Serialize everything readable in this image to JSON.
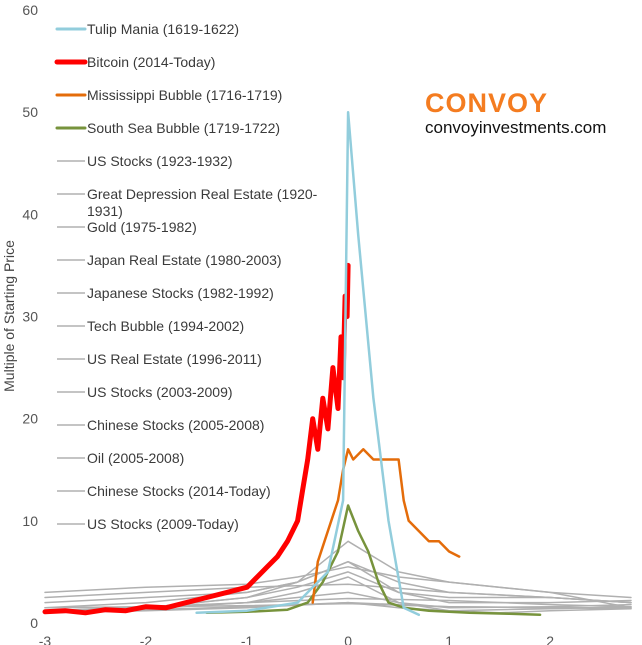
{
  "chart_data": {
    "type": "line",
    "title": "",
    "xlabel": "",
    "ylabel": "Multiple of Starting Price",
    "xlim": [
      -3,
      2.8
    ],
    "ylim": [
      0,
      60
    ],
    "x_ticks": [
      -3,
      -2,
      -1,
      0,
      1,
      2
    ],
    "y_ticks": [
      0,
      10,
      20,
      30,
      40,
      50,
      60
    ],
    "grid": false,
    "legend_position": "top-left",
    "brand": {
      "name": "CONVOY",
      "website": "convoyinvestments.com"
    },
    "colors": {
      "tulip": "#92cddc",
      "bitcoin": "#ff0000",
      "mississippi": "#e46c0a",
      "southsea": "#77933c",
      "other": "#b0b0b0"
    },
    "series": [
      {
        "name": "Tulip Mania (1619-1622)",
        "color": "#92cddc",
        "width": 2.5,
        "x": [
          -1.5,
          -1.0,
          -0.5,
          -0.2,
          -0.05,
          0.0,
          0.1,
          0.25,
          0.4,
          0.55,
          0.7
        ],
        "y": [
          1,
          1.2,
          2,
          5,
          12,
          50,
          38,
          22,
          10,
          1.5,
          0.8
        ]
      },
      {
        "name": "Bitcoin (2014-Today)",
        "color": "#ff0000",
        "width": 5,
        "x": [
          -3.0,
          -2.8,
          -2.6,
          -2.4,
          -2.2,
          -2.0,
          -1.8,
          -1.6,
          -1.4,
          -1.2,
          -1.0,
          -0.9,
          -0.8,
          -0.7,
          -0.6,
          -0.5,
          -0.45,
          -0.4,
          -0.35,
          -0.3,
          -0.25,
          -0.2,
          -0.15,
          -0.1,
          -0.07,
          -0.05,
          -0.03,
          -0.01,
          0.0
        ],
        "y": [
          1.1,
          1.2,
          1.0,
          1.3,
          1.2,
          1.6,
          1.5,
          2.0,
          2.5,
          3.0,
          3.5,
          4.5,
          5.5,
          6.5,
          8,
          10,
          13,
          16,
          20,
          17,
          22,
          19,
          25,
          21,
          28,
          24,
          32,
          30,
          35
        ]
      },
      {
        "name": "Mississippi Bubble (1716-1719)",
        "color": "#e46c0a",
        "width": 2.5,
        "x": [
          -0.35,
          -0.3,
          -0.2,
          -0.1,
          -0.05,
          0.0,
          0.05,
          0.15,
          0.25,
          0.35,
          0.5,
          0.55,
          0.6,
          0.7,
          0.8,
          0.9,
          1.0,
          1.1
        ],
        "y": [
          2,
          6,
          9,
          12,
          15,
          17,
          16,
          17,
          16,
          16,
          16,
          12,
          10,
          9,
          8,
          8,
          7,
          6.5
        ]
      },
      {
        "name": "South Sea Bubble (1719-1722)",
        "color": "#77933c",
        "width": 2.5,
        "x": [
          -1.4,
          -1.0,
          -0.6,
          -0.4,
          -0.25,
          -0.1,
          0.0,
          0.1,
          0.2,
          0.3,
          0.4,
          0.55,
          0.8,
          1.2,
          1.6,
          1.9
        ],
        "y": [
          1,
          1.1,
          1.3,
          2,
          4,
          7,
          11.5,
          9,
          7,
          4,
          2,
          1.5,
          1.2,
          1.0,
          0.9,
          0.8
        ]
      },
      {
        "name": "US Stocks (1923-1932)",
        "color": "#b0b0b0",
        "width": 1.5,
        "x": [
          -3,
          -2,
          -1,
          -0.5,
          0.0,
          0.5,
          1.0,
          1.5,
          2.0,
          2.8
        ],
        "y": [
          1,
          1.4,
          2,
          3,
          4.5,
          2,
          1.2,
          1,
          1.2,
          1.4
        ]
      },
      {
        "name": "Great Depression Real Estate (1920-1931)",
        "color": "#b0b0b0",
        "width": 1.5,
        "x": [
          -3,
          -2,
          -1,
          0,
          1,
          2,
          2.8
        ],
        "y": [
          1.5,
          1.6,
          1.7,
          1.9,
          1.6,
          1.5,
          1.4
        ]
      },
      {
        "name": "Gold (1975-1982)",
        "color": "#b0b0b0",
        "width": 1.5,
        "x": [
          -3,
          -2,
          -1,
          -0.5,
          0.0,
          0.5,
          1.0,
          2.0,
          2.8
        ],
        "y": [
          2,
          2.5,
          3,
          4,
          8,
          5,
          4,
          3,
          2.5
        ]
      },
      {
        "name": "Japan Real Estate (1980-2003)",
        "color": "#b0b0b0",
        "width": 1.5,
        "x": [
          -3,
          -2,
          -1,
          0,
          1,
          2,
          2.8
        ],
        "y": [
          1.2,
          1.6,
          2,
          2.4,
          2.2,
          1.8,
          1.6
        ]
      },
      {
        "name": "Japanese Stocks (1982-1992)",
        "color": "#b0b0b0",
        "width": 1.5,
        "x": [
          -3,
          -2,
          -1,
          -0.5,
          0.0,
          0.5,
          1.0,
          2.0,
          2.8
        ],
        "y": [
          1,
          1.5,
          2.5,
          4,
          6,
          4,
          3,
          2.5,
          2
        ]
      },
      {
        "name": "Tech Bubble (1994-2002)",
        "color": "#b0b0b0",
        "width": 1.5,
        "x": [
          -3,
          -2,
          -1,
          -0.5,
          0.0,
          0.5,
          1.0,
          2.0,
          2.8
        ],
        "y": [
          1,
          1.5,
          2.5,
          3.5,
          5,
          3,
          2,
          2,
          2.2
        ]
      },
      {
        "name": "US Real Estate (1996-2011)",
        "color": "#b0b0b0",
        "width": 1.5,
        "x": [
          -3,
          -2,
          -1,
          0,
          1,
          2,
          2.8
        ],
        "y": [
          1,
          1.2,
          1.5,
          2,
          1.6,
          1.5,
          1.5
        ]
      },
      {
        "name": "US Stocks (2003-2009)",
        "color": "#b0b0b0",
        "width": 1.5,
        "x": [
          -3,
          -2,
          -1,
          0,
          0.5,
          1,
          2,
          2.8
        ],
        "y": [
          1,
          1.3,
          1.6,
          2,
          1.5,
          1.2,
          1.4,
          1.6
        ]
      },
      {
        "name": "Chinese Stocks (2005-2008)",
        "color": "#b0b0b0",
        "width": 1.5,
        "x": [
          -3,
          -2,
          -1,
          -0.5,
          0.0,
          0.5,
          1.0,
          2.0,
          2.8
        ],
        "y": [
          1.5,
          2,
          3,
          4,
          6,
          3,
          2.5,
          2.5,
          2
        ]
      },
      {
        "name": "Oil (2005-2008)",
        "color": "#b0b0b0",
        "width": 1.5,
        "x": [
          -3,
          -2,
          -1,
          0,
          0.5,
          1,
          2,
          2.8
        ],
        "y": [
          1.2,
          1.5,
          2,
          3,
          2,
          1.5,
          1.6,
          1.8
        ]
      },
      {
        "name": "Chinese Stocks (2014-Today)",
        "color": "#b0b0b0",
        "width": 1.5,
        "x": [
          -3,
          -2,
          -1,
          -0.5,
          0.0,
          0.5,
          1.0,
          2.0,
          2.8
        ],
        "y": [
          3,
          3.5,
          3.8,
          4.5,
          5.5,
          4.5,
          4,
          3,
          1.5
        ]
      },
      {
        "name": "US Stocks (2009-Today)",
        "color": "#b0b0b0",
        "width": 1.5,
        "x": [
          -3,
          -2,
          -1,
          0,
          1,
          2,
          2.8
        ],
        "y": [
          2.5,
          3,
          3.5,
          3.8,
          3,
          2.5,
          2
        ]
      }
    ]
  }
}
